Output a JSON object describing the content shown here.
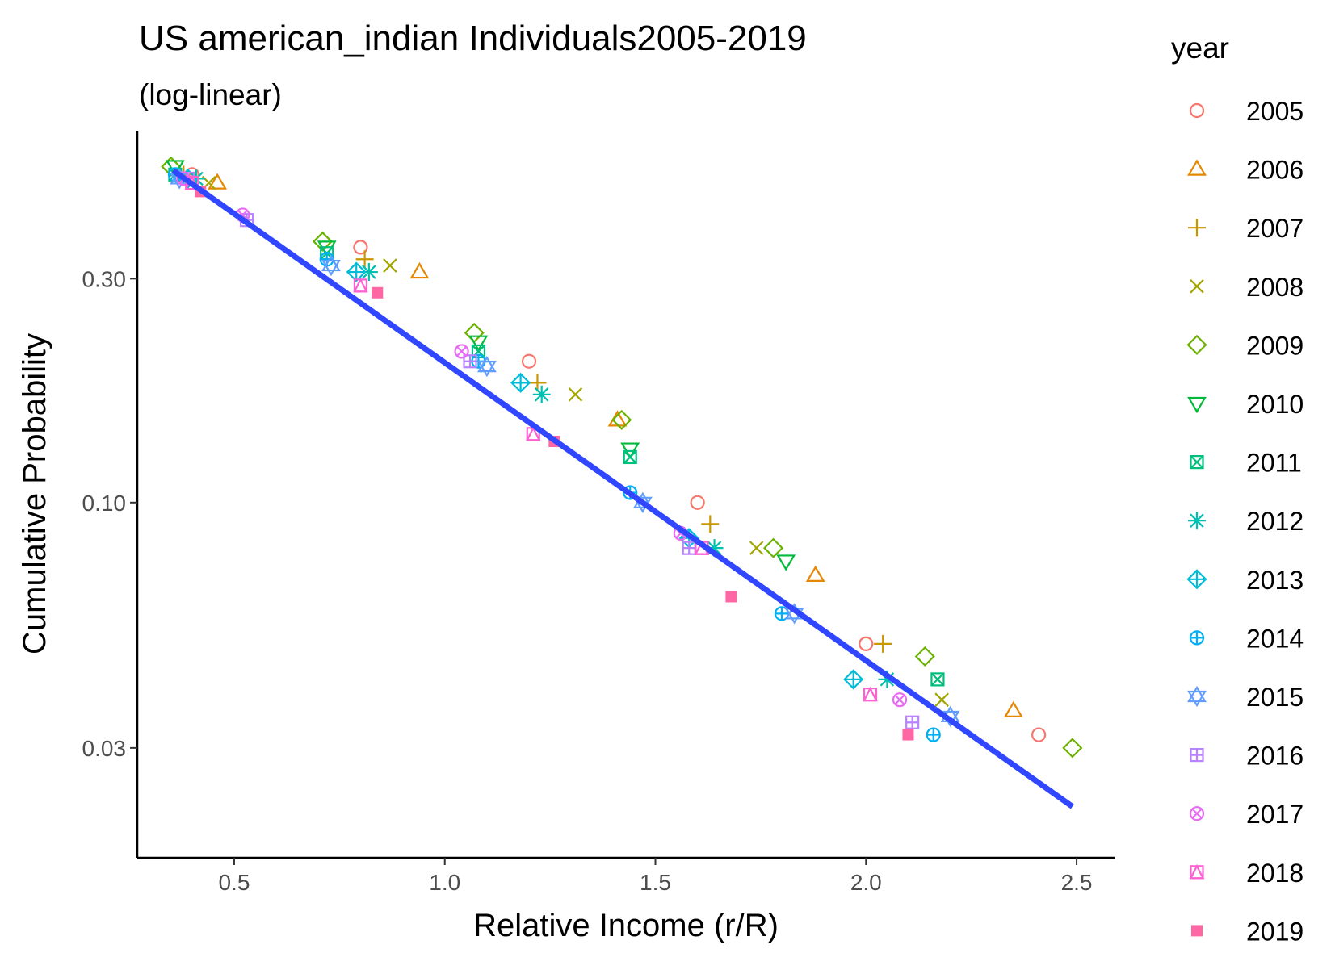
{
  "title": "US american_indian Individuals2005-2019",
  "subtitle": "(log-linear)",
  "legend": {
    "title": "year",
    "items": [
      {
        "label": "2005",
        "color": "#F8766D",
        "shape": "circle-open"
      },
      {
        "label": "2006",
        "color": "#E58700",
        "shape": "triangle-open"
      },
      {
        "label": "2007",
        "color": "#C99800",
        "shape": "plus"
      },
      {
        "label": "2008",
        "color": "#A3A500",
        "shape": "cross"
      },
      {
        "label": "2009",
        "color": "#6BB100",
        "shape": "diamond-open"
      },
      {
        "label": "2010",
        "color": "#00BA38",
        "shape": "triangle-down-open"
      },
      {
        "label": "2011",
        "color": "#00BF7D",
        "shape": "square-cross"
      },
      {
        "label": "2012",
        "color": "#00C0AF",
        "shape": "asterisk"
      },
      {
        "label": "2013",
        "color": "#00BCD8",
        "shape": "diamond-plus"
      },
      {
        "label": "2014",
        "color": "#00B0F6",
        "shape": "circle-plus"
      },
      {
        "label": "2015",
        "color": "#619CFF",
        "shape": "star-of-david"
      },
      {
        "label": "2016",
        "color": "#B983FF",
        "shape": "square-plus"
      },
      {
        "label": "2017",
        "color": "#E76BF3",
        "shape": "circle-cross"
      },
      {
        "label": "2018",
        "color": "#FD61D1",
        "shape": "square-triangle"
      },
      {
        "label": "2019",
        "color": "#FF67A4",
        "shape": "square-filled"
      }
    ]
  },
  "chart_data": {
    "type": "scatter",
    "title": "US american_indian Individuals2005-2019",
    "subtitle": "(log-linear)",
    "xlabel": "Relative Income (r/R)",
    "ylabel": "Cumulative Probability",
    "x_scale": "linear",
    "y_scale": "log",
    "xlim": [
      0.27,
      2.59
    ],
    "ylim": [
      0.0175,
      0.62
    ],
    "x_ticks": [
      0.5,
      1.0,
      1.5,
      2.0,
      2.5
    ],
    "x_tick_labels": [
      "0.5",
      "1.0",
      "1.5",
      "2.0",
      "2.5"
    ],
    "y_ticks": [
      0.03,
      0.1,
      0.3
    ],
    "y_tick_labels": [
      "0.03",
      "0.10",
      "0.30"
    ],
    "grid": false,
    "legend_position": "right",
    "series": [
      {
        "name": "2005",
        "points": [
          [
            0.4,
            0.5
          ],
          [
            0.8,
            0.35
          ],
          [
            1.2,
            0.2
          ],
          [
            1.6,
            0.1
          ],
          [
            2.0,
            0.05
          ],
          [
            2.41,
            0.032
          ]
        ]
      },
      {
        "name": "2006",
        "points": [
          [
            0.46,
            0.48
          ],
          [
            0.94,
            0.31
          ],
          [
            1.41,
            0.15
          ],
          [
            1.88,
            0.07
          ],
          [
            2.35,
            0.036
          ]
        ]
      },
      {
        "name": "2007",
        "points": [
          [
            0.38,
            0.5
          ],
          [
            0.81,
            0.33
          ],
          [
            1.22,
            0.18
          ],
          [
            1.63,
            0.09
          ],
          [
            2.04,
            0.05
          ]
        ]
      },
      {
        "name": "2008",
        "points": [
          [
            0.44,
            0.48
          ],
          [
            0.87,
            0.32
          ],
          [
            1.31,
            0.17
          ],
          [
            1.74,
            0.08
          ],
          [
            2.18,
            0.038
          ]
        ]
      },
      {
        "name": "2009",
        "points": [
          [
            0.35,
            0.52
          ],
          [
            0.71,
            0.36
          ],
          [
            1.07,
            0.23
          ],
          [
            1.42,
            0.15
          ],
          [
            1.78,
            0.08
          ],
          [
            2.14,
            0.047
          ],
          [
            2.49,
            0.03
          ]
        ]
      },
      {
        "name": "2010",
        "points": [
          [
            0.36,
            0.52
          ],
          [
            0.72,
            0.35
          ],
          [
            1.08,
            0.22
          ],
          [
            1.44,
            0.13
          ],
          [
            1.81,
            0.075
          ]
        ]
      },
      {
        "name": "2011",
        "points": [
          [
            0.36,
            0.5
          ],
          [
            0.72,
            0.34
          ],
          [
            1.08,
            0.21
          ],
          [
            1.44,
            0.125
          ],
          [
            2.17,
            0.042
          ]
        ]
      },
      {
        "name": "2012",
        "points": [
          [
            0.41,
            0.49
          ],
          [
            0.82,
            0.31
          ],
          [
            1.23,
            0.17
          ],
          [
            1.64,
            0.08
          ],
          [
            2.05,
            0.042
          ]
        ]
      },
      {
        "name": "2013",
        "points": [
          [
            0.39,
            0.49
          ],
          [
            0.79,
            0.31
          ],
          [
            1.18,
            0.18
          ],
          [
            1.58,
            0.084
          ],
          [
            1.97,
            0.042
          ]
        ]
      },
      {
        "name": "2014",
        "points": [
          [
            0.36,
            0.5
          ],
          [
            0.72,
            0.33
          ],
          [
            1.08,
            0.2
          ],
          [
            1.44,
            0.105
          ],
          [
            1.8,
            0.058
          ],
          [
            2.16,
            0.032
          ]
        ]
      },
      {
        "name": "2015",
        "points": [
          [
            0.37,
            0.49
          ],
          [
            0.73,
            0.32
          ],
          [
            1.1,
            0.195
          ],
          [
            1.47,
            0.1
          ],
          [
            1.83,
            0.058
          ],
          [
            2.2,
            0.035
          ]
        ]
      },
      {
        "name": "2016",
        "points": [
          [
            0.39,
            0.49
          ],
          [
            0.53,
            0.4
          ],
          [
            1.06,
            0.2
          ],
          [
            1.58,
            0.08
          ],
          [
            2.11,
            0.034
          ]
        ]
      },
      {
        "name": "2017",
        "points": [
          [
            0.38,
            0.49
          ],
          [
            0.52,
            0.41
          ],
          [
            1.04,
            0.21
          ],
          [
            1.56,
            0.086
          ],
          [
            2.08,
            0.038
          ]
        ]
      },
      {
        "name": "2018",
        "points": [
          [
            0.4,
            0.48
          ],
          [
            0.8,
            0.29
          ],
          [
            1.21,
            0.14
          ],
          [
            1.61,
            0.08
          ],
          [
            2.01,
            0.039
          ]
        ]
      },
      {
        "name": "2019",
        "points": [
          [
            0.42,
            0.46
          ],
          [
            0.84,
            0.28
          ],
          [
            1.26,
            0.135
          ],
          [
            1.68,
            0.063
          ],
          [
            2.1,
            0.032
          ]
        ]
      }
    ],
    "fit_line": {
      "points": [
        [
          0.355,
          0.51
        ],
        [
          2.49,
          0.0225
        ]
      ],
      "color": "#3047FF"
    }
  }
}
